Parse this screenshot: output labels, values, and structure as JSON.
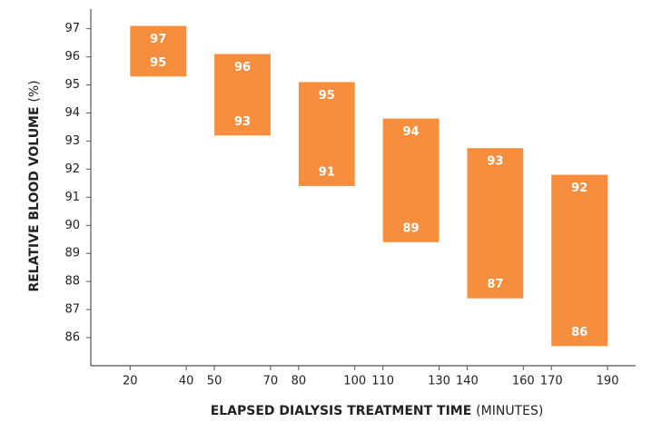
{
  "chart_data": {
    "type": "range_bar",
    "x_label": "ELAPSED DIALYSIS TREATMENT TIME",
    "x_unit": "(MINUTES)",
    "y_label": "RELATIVE BLOOD VOLUME",
    "y_unit": "(%)",
    "color": "#f68e3e",
    "x_ranges": [
      [
        20,
        40
      ],
      [
        50,
        70
      ],
      [
        80,
        100
      ],
      [
        110,
        130
      ],
      [
        140,
        160
      ],
      [
        170,
        190
      ]
    ],
    "high": [
      97.1,
      96.1,
      95.1,
      93.8,
      92.75,
      91.8
    ],
    "low": [
      95.3,
      93.2,
      91.4,
      89.4,
      87.4,
      85.7
    ],
    "high_labels": [
      "97",
      "96",
      "95",
      "94",
      "93",
      "92"
    ],
    "low_labels": [
      "95",
      "93",
      "91",
      "89",
      "87",
      "86"
    ],
    "xlim": [
      6,
      200
    ],
    "ylim": [
      85,
      97.7
    ],
    "xticks": [
      20,
      40,
      50,
      70,
      80,
      100,
      110,
      130,
      140,
      160,
      170,
      190
    ],
    "yticks": [
      86,
      87,
      88,
      89,
      90,
      91,
      92,
      93,
      94,
      95,
      96,
      97
    ]
  }
}
